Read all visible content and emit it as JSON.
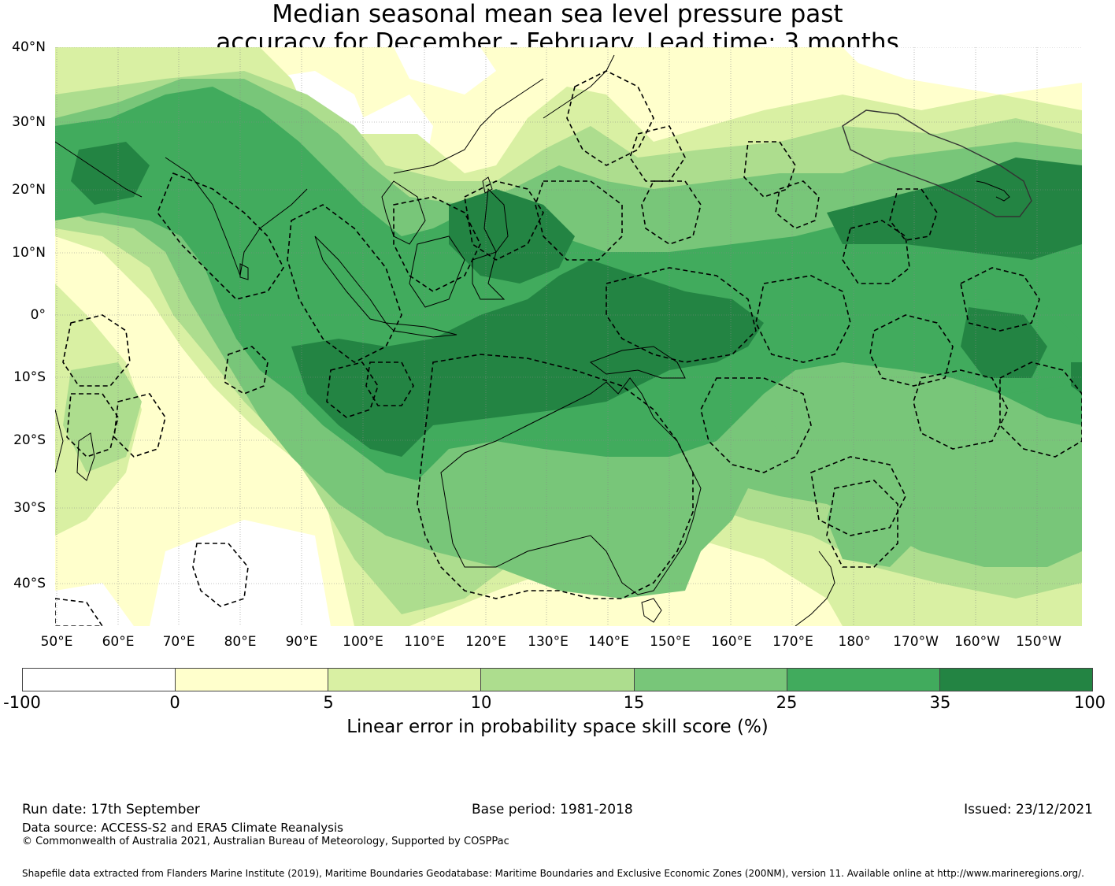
{
  "title": {
    "line1": "Median seasonal mean sea level pressure past",
    "line2": "accuracy for December - February. Lead time: 3 months"
  },
  "map": {
    "lat_labels": [
      "40°N",
      "30°N",
      "20°N",
      "10°N",
      "0°",
      "10°S",
      "20°S",
      "30°S",
      "40°S"
    ],
    "lon_labels": [
      "50°E",
      "60°E",
      "70°E",
      "80°E",
      "90°E",
      "100°E",
      "110°E",
      "120°E",
      "130°E",
      "140°E",
      "150°E",
      "160°E",
      "170°E",
      "180°",
      "170°W",
      "160°W",
      "150°W"
    ],
    "colors": {
      "land_outline": "#000000",
      "eez_boundary": "#000000",
      "gridline": "#888888"
    }
  },
  "colorbar": {
    "ticks": [
      "-100",
      "0",
      "5",
      "10",
      "15",
      "25",
      "35",
      "100"
    ],
    "colors": [
      "#ffffff",
      "#ffffcc",
      "#d9f0a3",
      "#addd8e",
      "#78c679",
      "#41ab5d",
      "#238443"
    ],
    "label": "Linear error in probability space skill score (%)"
  },
  "footer": {
    "run_date": "Run date: 17th September",
    "base_period": "Base period: 1981-2018",
    "issued": "Issued: 23/12/2021",
    "data_source": "Data source: ACCESS-S2 and ERA5 Climate Reanalysis",
    "copyright": "© Commonwealth of Australia 2021, Australian Bureau of Meteorology, Supported by COSPPac",
    "shapefile": "Shapefile data extracted from Flanders Marine Institute (2019), Maritime Boundaries Geodatabase: Maritime Boundaries and Exclusive Economic Zones (200NM), version 11. Available online at http://www.marineregions.org/."
  }
}
